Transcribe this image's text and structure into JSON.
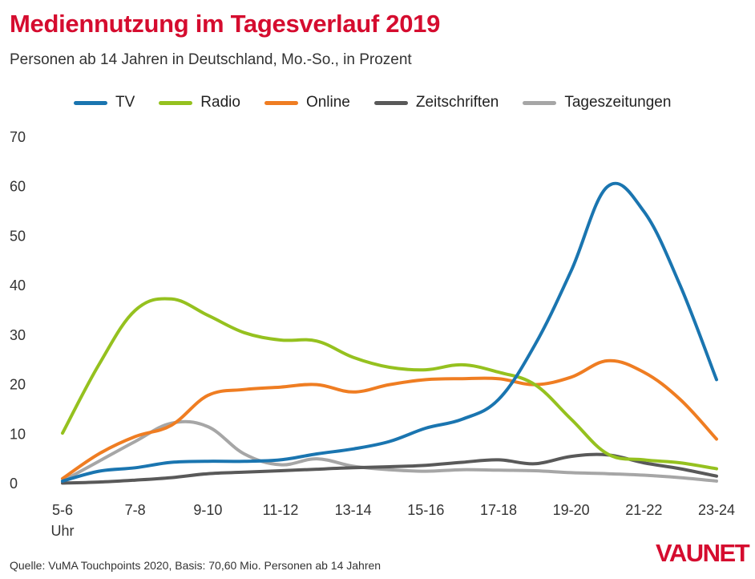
{
  "header": {
    "title": "Mediennutzung im Tagesverlauf 2019",
    "subtitle": "Personen ab 14 Jahren in Deutschland, Mo.-So., in Prozent"
  },
  "footer": {
    "source": "Quelle: VuMA Touchpoints 2020, Basis: 70,60 Mio. Personen ab 14 Jahren",
    "logo": "VAUNET"
  },
  "chart_data": {
    "type": "line",
    "title": "Mediennutzung im Tagesverlauf 2019",
    "subtitle": "Personen ab 14 Jahren in Deutschland, Mo.-So., in Prozent",
    "xlabel": "",
    "ylabel": "",
    "ylim": [
      0,
      70
    ],
    "y_ticks": [
      0,
      10,
      20,
      30,
      40,
      50,
      60,
      70
    ],
    "grid": false,
    "legend_position": "top",
    "categories": [
      "5-6",
      "6-7",
      "7-8",
      "8-9",
      "9-10",
      "10-11",
      "11-12",
      "12-13",
      "13-14",
      "14-15",
      "15-16",
      "16-17",
      "17-18",
      "18-19",
      "19-20",
      "20-21",
      "21-22",
      "22-23",
      "23-24"
    ],
    "x_tick_labels": [
      "5-6",
      "",
      "7-8",
      "",
      "9-10",
      "",
      "11-12",
      "",
      "13-14",
      "",
      "15-16",
      "",
      "17-18",
      "",
      "19-20",
      "",
      "21-22",
      "",
      "23-24"
    ],
    "x_first_sublabel": "Uhr",
    "series": [
      {
        "name": "TV",
        "color": "#1a75b0",
        "values": [
          0.5,
          2.5,
          3.2,
          4.3,
          4.5,
          4.5,
          4.8,
          6.0,
          7.0,
          8.5,
          11.2,
          13.0,
          17.0,
          28.0,
          43.0,
          60.0,
          55.0,
          40.0,
          21.0
        ]
      },
      {
        "name": "Radio",
        "color": "#95c11f",
        "values": [
          10.2,
          24.0,
          35.0,
          37.3,
          34.0,
          30.5,
          29.0,
          28.8,
          25.5,
          23.5,
          23.0,
          24.0,
          22.5,
          20.0,
          13.0,
          6.0,
          4.8,
          4.2,
          3.0
        ]
      },
      {
        "name": "Online",
        "color": "#ef7d22",
        "values": [
          1.0,
          6.0,
          9.5,
          11.8,
          17.8,
          19.0,
          19.5,
          20.0,
          18.5,
          20.0,
          21.0,
          21.2,
          21.2,
          20.0,
          21.5,
          24.8,
          22.5,
          17.0,
          9.0
        ]
      },
      {
        "name": "Zeitschriften",
        "color": "#595959",
        "values": [
          0.1,
          0.3,
          0.7,
          1.2,
          2.0,
          2.3,
          2.6,
          2.9,
          3.2,
          3.4,
          3.7,
          4.3,
          4.8,
          4.0,
          5.5,
          5.8,
          4.2,
          3.0,
          1.5
        ]
      },
      {
        "name": "Tageszeitungen",
        "color": "#a6a6a6",
        "values": [
          0.5,
          4.5,
          8.5,
          12.2,
          11.5,
          6.0,
          3.8,
          5.0,
          3.5,
          2.8,
          2.5,
          2.8,
          2.7,
          2.6,
          2.2,
          2.0,
          1.7,
          1.2,
          0.5
        ]
      }
    ]
  }
}
